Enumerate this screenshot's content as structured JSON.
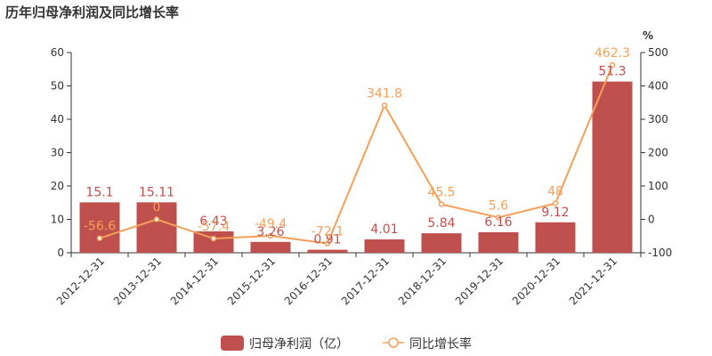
{
  "chart_data": {
    "type": "bar",
    "title": "历年归母净利润及同比增长率",
    "categories": [
      "2012-12-31",
      "2013-12-31",
      "2014-12-31",
      "2015-12-31",
      "2016-12-31",
      "2017-12-31",
      "2018-12-31",
      "2019-12-31",
      "2020-12-31",
      "2021-12-31"
    ],
    "bar_labels": [
      "15.1",
      "15.11",
      "6.43",
      "3.26",
      "0.91",
      "4.01",
      "5.84",
      "6.16",
      "9.12",
      "51.3"
    ],
    "line_labels": [
      "-56.6",
      "0",
      "-57.4",
      "-49.4",
      "-72.1",
      "341.8",
      "45.5",
      "5.6",
      "48",
      "462.3"
    ],
    "series": [
      {
        "name": "归母净利润（亿）",
        "type": "bar",
        "axis": "left",
        "color": "#c0504d",
        "values": [
          15.1,
          15.11,
          6.43,
          3.26,
          0.91,
          4.01,
          5.84,
          6.16,
          9.12,
          51.3
        ]
      },
      {
        "name": "同比增长率",
        "type": "line",
        "axis": "right",
        "color": "#f5a05a",
        "values": [
          -56.6,
          0,
          -57.4,
          -49.4,
          -72.1,
          341.8,
          45.5,
          5.6,
          48,
          462.3
        ]
      }
    ],
    "y_left": {
      "min": 0,
      "max": 60,
      "ticks": [
        "0",
        "10",
        "20",
        "30",
        "40",
        "50",
        "60"
      ]
    },
    "y_right": {
      "min": -100,
      "max": 500,
      "ticks": [
        "-100",
        "0",
        "100",
        "200",
        "300",
        "400",
        "500"
      ],
      "unit": "%"
    },
    "legend_position": "bottom-center",
    "grid": false
  }
}
